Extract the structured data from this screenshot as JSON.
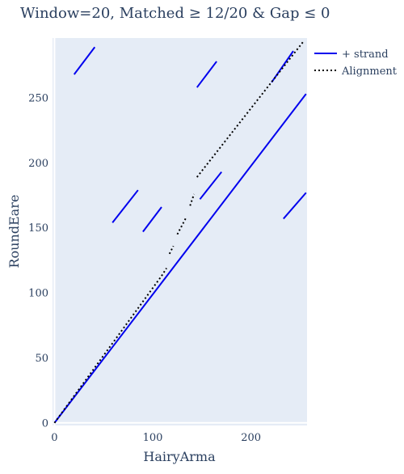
{
  "chart_data": {
    "type": "line",
    "title": "Window=20, Matched ≥ 12/20 & Gap ≤ 0",
    "xlabel": "HairyArma",
    "ylabel": "RoundEare",
    "xlim": [
      -2,
      257
    ],
    "ylim": [
      -2,
      296
    ],
    "x_ticks": [
      0,
      100,
      200
    ],
    "y_ticks": [
      0,
      50,
      100,
      150,
      200,
      250
    ],
    "grid": false,
    "legend_position": "top-right",
    "colors": {
      "plus_strand": "#0000ee",
      "alignment": "#000000",
      "plot_bg": "#e5ecf6"
    },
    "series": [
      {
        "name": "+ strand",
        "style": "solid",
        "segments": [
          [
            [
              0,
              0
            ],
            [
              256,
              253
            ]
          ],
          [
            [
              20,
              268
            ],
            [
              41,
              289
            ]
          ],
          [
            [
              145,
              258
            ],
            [
              165,
              278
            ]
          ],
          [
            [
              59,
              154
            ],
            [
              85,
              179
            ]
          ],
          [
            [
              90,
              147
            ],
            [
              109,
              166
            ]
          ],
          [
            [
              148,
              172
            ],
            [
              170,
              193
            ]
          ],
          [
            [
              233,
              157
            ],
            [
              256,
              177
            ]
          ],
          [
            [
              221,
              262
            ],
            [
              243,
              286
            ]
          ]
        ]
      },
      {
        "name": "Alignment",
        "style": "dotted",
        "segments": [
          [
            [
              0,
              0
            ],
            [
              108,
              112
            ]
          ],
          [
            [
              109,
              113
            ],
            [
              114,
              119
            ]
          ],
          [
            [
              117,
              130
            ],
            [
              121,
              136
            ]
          ],
          [
            [
              125,
              145
            ],
            [
              134,
              158
            ]
          ],
          [
            [
              138,
              167
            ],
            [
              142,
              176
            ]
          ],
          [
            [
              145,
              189
            ],
            [
              254,
              294
            ]
          ]
        ]
      }
    ]
  }
}
